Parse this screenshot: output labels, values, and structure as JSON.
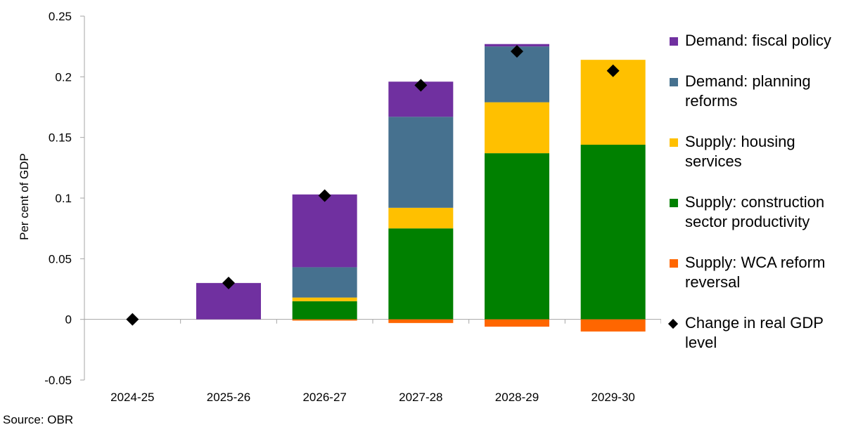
{
  "source": "Source: OBR",
  "legend": [
    {
      "label": "Demand: fiscal policy",
      "color": "#7030a0",
      "kind": "square"
    },
    {
      "label": "Demand: planning reforms",
      "color": "#46718f",
      "kind": "square"
    },
    {
      "label": "Supply: housing services",
      "color": "#ffc000",
      "kind": "square"
    },
    {
      "label": "Supply: construction sector productivity",
      "color": "#008000",
      "kind": "square"
    },
    {
      "label": "Supply: WCA reform reversal",
      "color": "#ff6600",
      "kind": "square"
    },
    {
      "label": "Change in real GDP level",
      "color": "#000000",
      "kind": "diamond"
    }
  ],
  "chart_data": {
    "type": "bar",
    "stacked": true,
    "title": "",
    "xlabel": "",
    "ylabel": "Per cent of GDP",
    "ylim": [
      -0.05,
      0.25
    ],
    "yticks": [
      -0.05,
      0,
      0.05,
      0.1,
      0.15,
      0.2,
      0.25
    ],
    "ytick_labels": [
      "-0.05",
      "0",
      "0.05",
      "0.1",
      "0.15",
      "0.2",
      "0.25"
    ],
    "categories": [
      "2024-25",
      "2025-26",
      "2026-27",
      "2027-28",
      "2028-29",
      "2029-30"
    ],
    "series": [
      {
        "name": "Supply: construction sector productivity",
        "color": "#008000",
        "values": [
          0,
          0,
          0.015,
          0.075,
          0.137,
          0.144
        ]
      },
      {
        "name": "Supply: housing services",
        "color": "#ffc000",
        "values": [
          0,
          0,
          0.003,
          0.017,
          0.042,
          0.07
        ]
      },
      {
        "name": "Demand: planning reforms",
        "color": "#46718f",
        "values": [
          0,
          0,
          0.025,
          0.075,
          0.046,
          0
        ]
      },
      {
        "name": "Demand: fiscal policy",
        "color": "#7030a0",
        "values": [
          0,
          0.03,
          0.06,
          0.029,
          0.002,
          0
        ]
      },
      {
        "name": "Supply: WCA reform reversal",
        "color": "#ff6600",
        "values": [
          0,
          0,
          -0.001,
          -0.003,
          -0.006,
          -0.01
        ]
      }
    ],
    "markers": {
      "name": "Change in real GDP level",
      "type": "diamond",
      "color": "#000000",
      "values": [
        0,
        0.03,
        0.102,
        0.193,
        0.221,
        0.205
      ]
    },
    "grid": false,
    "legend_position": "right"
  }
}
